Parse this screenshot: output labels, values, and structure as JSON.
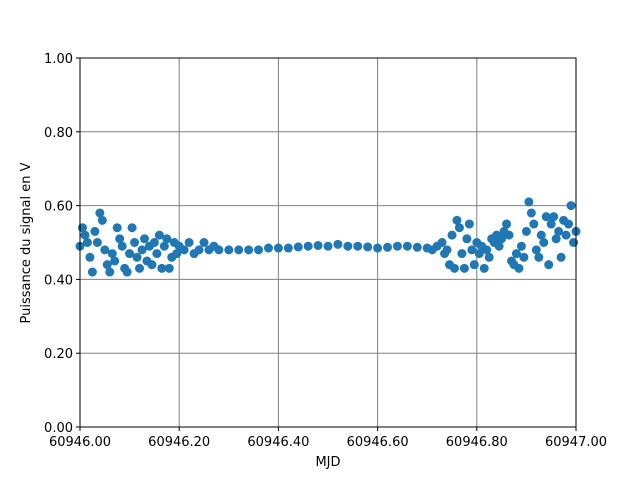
{
  "chart_data": {
    "type": "scatter",
    "xlabel": "MJD",
    "ylabel": "Puissance du signal en V",
    "color": "#1f77b4",
    "grid": true,
    "xlim": [
      60946.0,
      60947.0
    ],
    "xticks": [
      {
        "value": 60946.0,
        "label": "60946.00"
      },
      {
        "value": 60946.2,
        "label": "60946.20"
      },
      {
        "value": 60946.4,
        "label": "60946.40"
      },
      {
        "value": 60946.6,
        "label": "60946.60"
      },
      {
        "value": 60946.8,
        "label": "60946.80"
      },
      {
        "value": 60947.0,
        "label": "60947.00"
      }
    ],
    "ylim": [
      0,
      1
    ],
    "yticks": [
      {
        "value": 0,
        "label": "0.00"
      },
      {
        "value": 0.2,
        "label": "0.20"
      },
      {
        "value": 0.4,
        "label": "0.40"
      },
      {
        "value": 0.6,
        "label": "0.60"
      },
      {
        "value": 0.8,
        "label": "0.80"
      },
      {
        "value": 1,
        "label": "1.00"
      }
    ],
    "x": [
      60946.0,
      60946.005,
      60946.01,
      60946.015,
      60946.02,
      60946.025,
      60946.03,
      60946.035,
      60946.04,
      60946.045,
      60946.05,
      60946.055,
      60946.06,
      60946.065,
      60946.07,
      60946.075,
      60946.08,
      60946.085,
      60946.09,
      60946.095,
      60946.1,
      60946.105,
      60946.11,
      60946.115,
      60946.12,
      60946.125,
      60946.13,
      60946.135,
      60946.14,
      60946.145,
      60946.15,
      60946.155,
      60946.16,
      60946.165,
      60946.17,
      60946.175,
      60946.18,
      60946.185,
      60946.19,
      60946.195,
      60946.2,
      60946.21,
      60946.22,
      60946.23,
      60946.24,
      60946.25,
      60946.26,
      60946.27,
      60946.28,
      60946.3,
      60946.32,
      60946.34,
      60946.36,
      60946.38,
      60946.4,
      60946.42,
      60946.44,
      60946.46,
      60946.48,
      60946.5,
      60946.52,
      60946.54,
      60946.56,
      60946.58,
      60946.6,
      60946.62,
      60946.64,
      60946.66,
      60946.68,
      60946.7,
      60946.71,
      60946.72,
      60946.73,
      60946.735,
      60946.74,
      60946.745,
      60946.75,
      60946.755,
      60946.76,
      60946.765,
      60946.77,
      60946.775,
      60946.78,
      60946.785,
      60946.79,
      60946.795,
      60946.8,
      60946.805,
      60946.81,
      60946.815,
      60946.82,
      60946.825,
      60946.83,
      60946.835,
      60946.84,
      60946.845,
      60946.85,
      60946.855,
      60946.86,
      60946.865,
      60946.87,
      60946.875,
      60946.88,
      60946.885,
      60946.89,
      60946.895,
      60946.9,
      60946.905,
      60946.91,
      60946.915,
      60946.92,
      60946.925,
      60946.93,
      60946.935,
      60946.94,
      60946.945,
      60946.95,
      60946.955,
      60946.96,
      60946.965,
      60946.97,
      60946.975,
      60946.98,
      60946.985,
      60946.99,
      60946.995,
      60947.0
    ],
    "values": [
      0.49,
      0.54,
      0.52,
      0.5,
      0.46,
      0.42,
      0.53,
      0.5,
      0.58,
      0.56,
      0.48,
      0.44,
      0.42,
      0.47,
      0.45,
      0.54,
      0.51,
      0.49,
      0.43,
      0.42,
      0.47,
      0.54,
      0.5,
      0.46,
      0.43,
      0.48,
      0.51,
      0.45,
      0.49,
      0.44,
      0.5,
      0.47,
      0.52,
      0.43,
      0.49,
      0.51,
      0.43,
      0.46,
      0.5,
      0.47,
      0.49,
      0.48,
      0.5,
      0.47,
      0.48,
      0.5,
      0.48,
      0.49,
      0.48,
      0.48,
      0.48,
      0.48,
      0.48,
      0.485,
      0.485,
      0.485,
      0.488,
      0.49,
      0.492,
      0.49,
      0.495,
      0.49,
      0.49,
      0.488,
      0.485,
      0.487,
      0.49,
      0.49,
      0.487,
      0.485,
      0.48,
      0.49,
      0.5,
      0.47,
      0.48,
      0.44,
      0.52,
      0.43,
      0.56,
      0.54,
      0.47,
      0.43,
      0.51,
      0.55,
      0.48,
      0.44,
      0.5,
      0.47,
      0.49,
      0.43,
      0.48,
      0.46,
      0.51,
      0.5,
      0.52,
      0.49,
      0.51,
      0.53,
      0.55,
      0.52,
      0.45,
      0.44,
      0.47,
      0.43,
      0.49,
      0.46,
      0.53,
      0.61,
      0.58,
      0.55,
      0.48,
      0.46,
      0.52,
      0.5,
      0.57,
      0.44,
      0.55,
      0.57,
      0.51,
      0.53,
      0.46,
      0.56,
      0.52,
      0.55,
      0.6,
      0.5,
      0.53
    ]
  }
}
